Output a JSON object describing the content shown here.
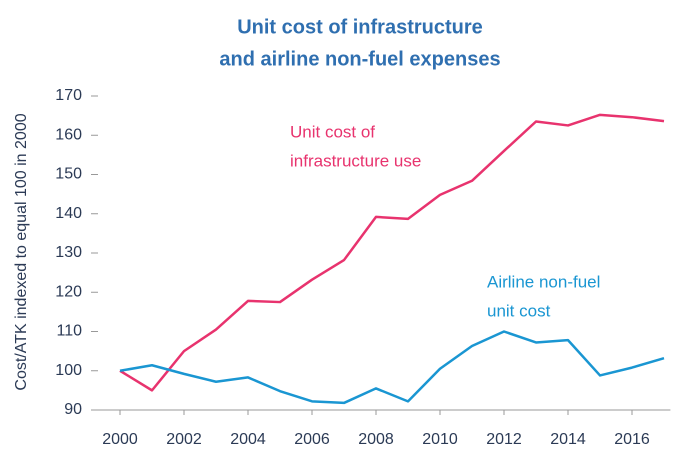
{
  "chart_data": {
    "type": "line",
    "title": [
      "Unit cost of infrastructure",
      "and airline non-fuel expenses"
    ],
    "ylabel": "Cost/ATK indexed to equal 100 in 2000",
    "x": [
      2000,
      2001,
      2002,
      2003,
      2004,
      2005,
      2006,
      2007,
      2008,
      2009,
      2010,
      2011,
      2012,
      2013,
      2014,
      2015,
      2016,
      2017
    ],
    "series": [
      {
        "name": "Unit cost of infrastructure use",
        "color": "#e8336e",
        "values": [
          100,
          95,
          105,
          110.5,
          117.8,
          117.5,
          123.2,
          128.2,
          139.2,
          138.7,
          144.8,
          148.4,
          156,
          163.5,
          162.5,
          165.2,
          164.6,
          163.6
        ]
      },
      {
        "name": "Airline non-fuel unit cost",
        "color": "#1a96d2",
        "values": [
          100,
          101.4,
          99.2,
          97.2,
          98.3,
          94.8,
          92.2,
          91.8,
          95.5,
          92.2,
          100.5,
          106.3,
          110,
          107.2,
          107.8,
          98.8,
          100.8,
          103.2
        ]
      }
    ],
    "annotations": [
      {
        "lines": [
          "Unit cost of",
          "infrastructure use"
        ],
        "color": "#e8336e"
      },
      {
        "lines": [
          "Airline non-fuel",
          "unit cost"
        ],
        "color": "#1a96d2"
      }
    ],
    "xlim": [
      1999.4,
      2017.2
    ],
    "xticks": [
      2000,
      2002,
      2004,
      2006,
      2008,
      2010,
      2012,
      2014,
      2016
    ],
    "ylim": [
      90,
      170
    ],
    "yticks": [
      90,
      100,
      110,
      120,
      130,
      140,
      150,
      160,
      170
    ]
  }
}
